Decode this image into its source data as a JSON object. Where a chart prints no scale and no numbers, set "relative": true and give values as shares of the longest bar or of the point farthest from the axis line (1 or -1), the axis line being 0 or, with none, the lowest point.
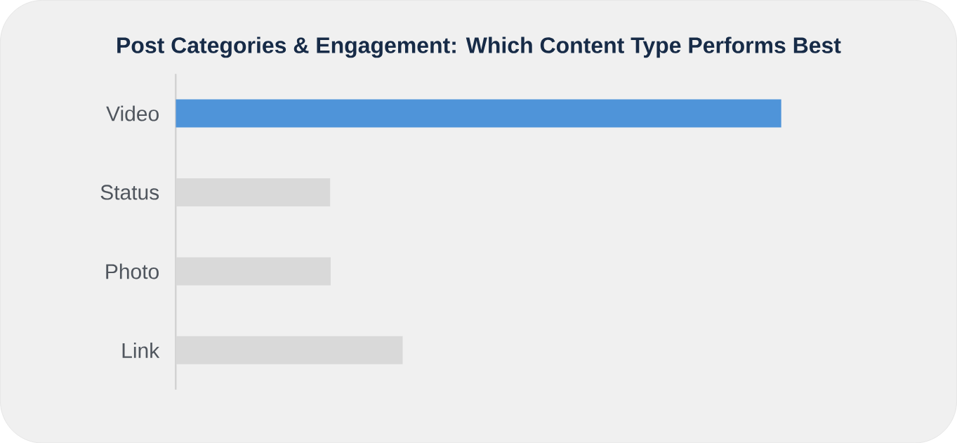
{
  "chart_data": {
    "type": "bar",
    "orientation": "horizontal",
    "relative": true,
    "title": "Post Categories & Engagement: Which Content Type Performs Best",
    "categories": [
      "Video",
      "Status",
      "Photo",
      "Link"
    ],
    "values": [
      1,
      0.255,
      0.256,
      0.375
    ],
    "colors": [
      "#4f94d9",
      "#d9d9d9",
      "#d9d9d9",
      "#d9d9d9"
    ]
  }
}
